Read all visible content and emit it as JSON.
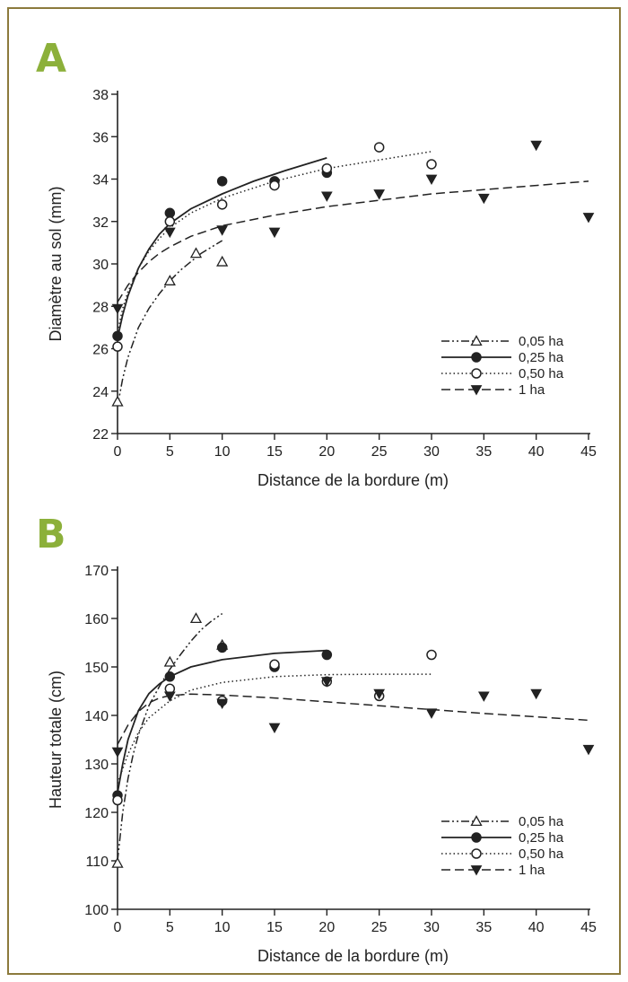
{
  "colors": {
    "panel_letter": "#8cb03a",
    "frame_border": "#8c7a3c",
    "ink": "#222222"
  },
  "chart_data": [
    {
      "panel": "A",
      "type": "scatter",
      "xlabel": "Distance de la bordure (m)",
      "ylabel": "Diamètre au sol (mm)",
      "xlim": [
        0,
        45
      ],
      "ylim": [
        22,
        38
      ],
      "xticks": [
        0,
        5,
        10,
        15,
        20,
        25,
        30,
        35,
        40,
        45
      ],
      "yticks": [
        22,
        24,
        26,
        28,
        30,
        32,
        34,
        36,
        38
      ],
      "grid": false,
      "legend_position": "bottom-right",
      "series": [
        {
          "name": "0,05 ha",
          "marker": "triangle-up-open",
          "line": "dashdotdot",
          "points": [
            [
              0,
              23.5
            ],
            [
              5,
              29.2
            ],
            [
              7.5,
              30.5
            ],
            [
              10,
              30.1
            ]
          ],
          "fit": [
            [
              0,
              23.3
            ],
            [
              0.5,
              24.6
            ],
            [
              1,
              25.6
            ],
            [
              2,
              27.0
            ],
            [
              3,
              27.9
            ],
            [
              4,
              28.6
            ],
            [
              5,
              29.2
            ],
            [
              6,
              29.7
            ],
            [
              7,
              30.1
            ],
            [
              8,
              30.5
            ],
            [
              9,
              30.8
            ],
            [
              10,
              31.1
            ]
          ]
        },
        {
          "name": "0,25 ha",
          "marker": "circle-filled",
          "line": "solid",
          "points": [
            [
              0,
              26.6
            ],
            [
              5,
              32.4
            ],
            [
              10,
              33.9
            ],
            [
              15,
              33.9
            ],
            [
              20,
              34.3
            ]
          ],
          "fit": [
            [
              0,
              26.5
            ],
            [
              0.5,
              27.6
            ],
            [
              1,
              28.5
            ],
            [
              2,
              29.8
            ],
            [
              3,
              30.7
            ],
            [
              4,
              31.4
            ],
            [
              5,
              31.9
            ],
            [
              7,
              32.6
            ],
            [
              10,
              33.3
            ],
            [
              13,
              33.9
            ],
            [
              16,
              34.4
            ],
            [
              20,
              35.0
            ]
          ]
        },
        {
          "name": "0,50 ha",
          "marker": "circle-open",
          "line": "dotted",
          "points": [
            [
              0,
              26.1
            ],
            [
              5,
              32.0
            ],
            [
              10,
              32.8
            ],
            [
              15,
              33.7
            ],
            [
              20,
              34.5
            ],
            [
              25,
              35.5
            ],
            [
              30,
              34.7
            ]
          ],
          "fit": [
            [
              0,
              26.8
            ],
            [
              0.5,
              27.9
            ],
            [
              1,
              28.7
            ],
            [
              2,
              29.8
            ],
            [
              3,
              30.6
            ],
            [
              4,
              31.2
            ],
            [
              5,
              31.7
            ],
            [
              7,
              32.4
            ],
            [
              10,
              33.1
            ],
            [
              15,
              33.9
            ],
            [
              20,
              34.5
            ],
            [
              25,
              34.9
            ],
            [
              30,
              35.3
            ]
          ]
        },
        {
          "name": "1 ha",
          "marker": "triangle-down-filled",
          "line": "dashed",
          "points": [
            [
              0,
              27.9
            ],
            [
              5,
              31.5
            ],
            [
              10,
              31.6
            ],
            [
              15,
              31.5
            ],
            [
              20,
              33.2
            ],
            [
              25,
              33.3
            ],
            [
              30,
              34.0
            ],
            [
              35,
              33.1
            ],
            [
              40,
              35.6
            ],
            [
              45,
              32.2
            ]
          ],
          "fit": [
            [
              0,
              28.2
            ],
            [
              1,
              29.0
            ],
            [
              2,
              29.6
            ],
            [
              3,
              30.1
            ],
            [
              4,
              30.5
            ],
            [
              5,
              30.8
            ],
            [
              7,
              31.3
            ],
            [
              10,
              31.8
            ],
            [
              15,
              32.3
            ],
            [
              20,
              32.7
            ],
            [
              25,
              33.0
            ],
            [
              30,
              33.3
            ],
            [
              35,
              33.5
            ],
            [
              40,
              33.7
            ],
            [
              45,
              33.9
            ]
          ]
        }
      ]
    },
    {
      "panel": "B",
      "type": "scatter",
      "xlabel": "Distance de la bordure (m)",
      "ylabel": "Hauteur totale (cm)",
      "xlim": [
        0,
        45
      ],
      "ylim": [
        100,
        170
      ],
      "xticks": [
        0,
        5,
        10,
        15,
        20,
        25,
        30,
        35,
        40,
        45
      ],
      "yticks": [
        100,
        110,
        120,
        130,
        140,
        150,
        160,
        170
      ],
      "grid": false,
      "legend_position": "bottom-right",
      "series": [
        {
          "name": "0,05 ha",
          "marker": "triangle-up-open",
          "line": "dashdotdot",
          "points": [
            [
              0,
              109.5
            ],
            [
              5,
              151
            ],
            [
              7.5,
              160
            ],
            [
              10,
              154.5
            ]
          ],
          "fit": [
            [
              0,
              110
            ],
            [
              0.5,
              120
            ],
            [
              1,
              127
            ],
            [
              1.5,
              132
            ],
            [
              2,
              136
            ],
            [
              3,
              142
            ],
            [
              4,
              146
            ],
            [
              5,
              149.5
            ],
            [
              6,
              152.5
            ],
            [
              7,
              155.3
            ],
            [
              8,
              157.7
            ],
            [
              9,
              159.5
            ],
            [
              10,
              161
            ]
          ]
        },
        {
          "name": "0,25 ha",
          "marker": "circle-filled",
          "line": "solid",
          "points": [
            [
              0,
              123.5
            ],
            [
              5,
              148
            ],
            [
              10,
              154
            ],
            [
              15,
              150
            ],
            [
              20,
              152.5
            ]
          ],
          "fit": [
            [
              0,
              124
            ],
            [
              0.5,
              130
            ],
            [
              1,
              135
            ],
            [
              2,
              141
            ],
            [
              3,
              144.5
            ],
            [
              4,
              146.5
            ],
            [
              5,
              148
            ],
            [
              7,
              150
            ],
            [
              10,
              151.5
            ],
            [
              15,
              152.8
            ],
            [
              20,
              153.4
            ]
          ]
        },
        {
          "name": "0,50 ha",
          "marker": "circle-open",
          "line": "dotted",
          "points": [
            [
              0,
              122.5
            ],
            [
              5,
              145.5
            ],
            [
              10,
              143
            ],
            [
              15,
              150.5
            ],
            [
              20,
              147
            ],
            [
              25,
              144
            ],
            [
              30,
              152.5
            ]
          ],
          "fit": [
            [
              0,
              126
            ],
            [
              1,
              132
            ],
            [
              2,
              136.5
            ],
            [
              3,
              139.5
            ],
            [
              5,
              143
            ],
            [
              7,
              145.2
            ],
            [
              10,
              146.8
            ],
            [
              15,
              148
            ],
            [
              20,
              148.4
            ],
            [
              25,
              148.5
            ],
            [
              30,
              148.5
            ]
          ]
        },
        {
          "name": "1 ha",
          "marker": "triangle-down-filled",
          "line": "dashed",
          "points": [
            [
              0,
              132.5
            ],
            [
              5,
              144
            ],
            [
              10,
              142.5
            ],
            [
              15,
              137.5
            ],
            [
              20,
              147
            ],
            [
              25,
              144.5
            ],
            [
              30,
              140.5
            ],
            [
              35,
              144
            ],
            [
              40,
              144.5
            ],
            [
              45,
              133
            ]
          ],
          "fit": [
            [
              0,
              134
            ],
            [
              1,
              138
            ],
            [
              2,
              140.8
            ],
            [
              3,
              142.6
            ],
            [
              4,
              143.6
            ],
            [
              5,
              144.1
            ],
            [
              7,
              144.4
            ],
            [
              10,
              144.2
            ],
            [
              15,
              143.6
            ],
            [
              20,
              142.8
            ],
            [
              25,
              142
            ],
            [
              30,
              141.2
            ],
            [
              35,
              140.4
            ],
            [
              40,
              139.7
            ],
            [
              45,
              139
            ]
          ]
        }
      ]
    }
  ]
}
